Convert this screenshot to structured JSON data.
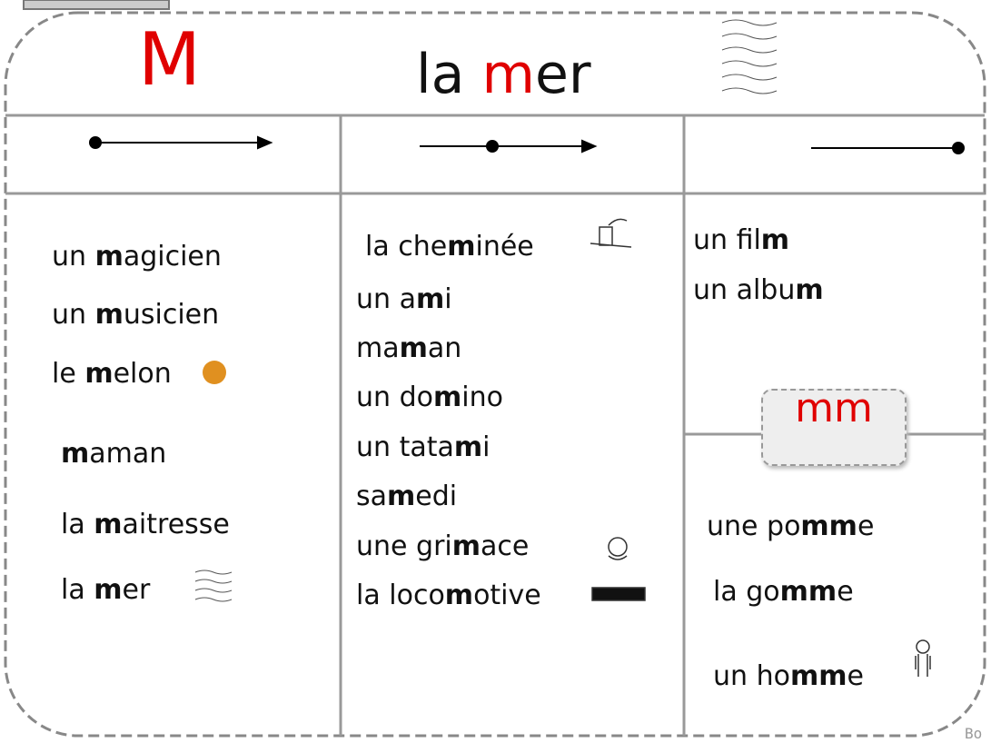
{
  "header": {
    "letter": "M",
    "word": [
      "la ",
      "m",
      "er"
    ]
  },
  "columns": [
    {
      "words": [
        [
          "un ",
          "m",
          "agicien"
        ],
        [
          "un ",
          "m",
          "usicien"
        ],
        [
          "le ",
          "m",
          "elon"
        ],
        [
          "",
          "m",
          "aman"
        ],
        [
          "la ",
          "m",
          "aitresse"
        ],
        [
          "la ",
          "m",
          "er"
        ]
      ]
    },
    {
      "words": [
        [
          "la che",
          "m",
          "inée"
        ],
        [
          "un a",
          "m",
          "i"
        ],
        [
          "ma",
          "m",
          "an"
        ],
        [
          "un do",
          "m",
          "ino"
        ],
        [
          "un tata",
          "m",
          "i"
        ],
        [
          "sa",
          "m",
          "edi"
        ],
        [
          "une gri",
          "m",
          "ace"
        ],
        [
          "la loco",
          "m",
          "otive"
        ]
      ]
    },
    {
      "words": [
        [
          "un fil",
          "m",
          ""
        ],
        [
          "un albu",
          "m",
          ""
        ]
      ]
    }
  ],
  "special": {
    "label": "mm",
    "words": [
      [
        "une po",
        "mm",
        "e"
      ],
      [
        "la go",
        "mm",
        "e"
      ],
      [
        "un ho",
        "mm",
        "e"
      ]
    ]
  },
  "footer": "Bo"
}
